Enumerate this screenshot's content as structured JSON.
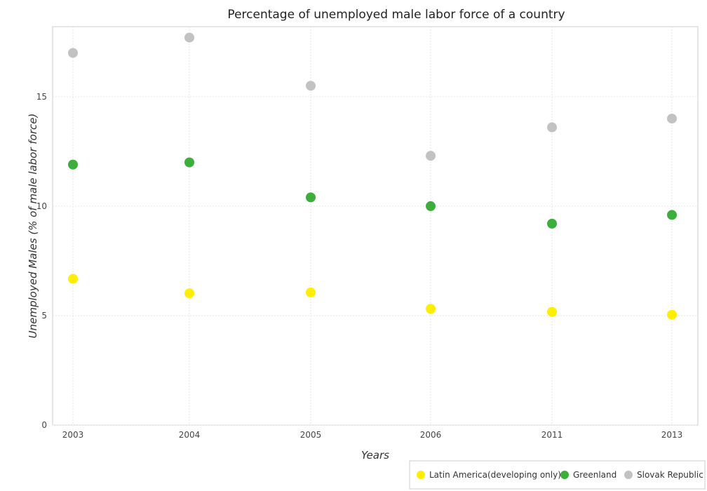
{
  "chart_data": {
    "type": "scatter",
    "title": "Percentage of unemployed male labor force of a country",
    "xlabel": "Years",
    "ylabel": "Unemployed Males (% of male labor force)",
    "categories": [
      "2003",
      "2004",
      "2005",
      "2006",
      "2011",
      "2013"
    ],
    "ylim": [
      0,
      18.2
    ],
    "yticks": [
      0,
      5,
      10,
      15
    ],
    "grid": true,
    "legend_position": "bottom-right",
    "series": [
      {
        "name": "Latin America(developing only)",
        "color": "#ffee00",
        "values": [
          6.68,
          6.02,
          6.06,
          5.31,
          5.17,
          5.04
        ]
      },
      {
        "name": "Greenland",
        "color": "#3cae3c",
        "values": [
          11.9,
          12.0,
          10.4,
          10.0,
          9.2,
          9.6
        ]
      },
      {
        "name": "Slovak Republic",
        "color": "#c2c2c2",
        "values": [
          17.0,
          17.7,
          15.5,
          12.3,
          13.6,
          14.0
        ]
      }
    ]
  }
}
